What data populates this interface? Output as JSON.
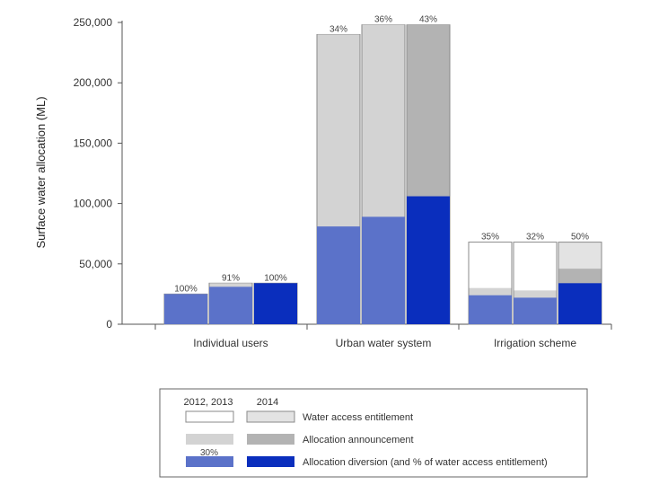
{
  "chart_data": {
    "type": "bar",
    "ylabel": "Surface water allocation (ML)",
    "ylim": [
      0,
      250000
    ],
    "yticks": [
      0,
      50000,
      100000,
      150000,
      200000,
      250000
    ],
    "ytick_labels": [
      "0",
      "50,000",
      "100,000",
      "150,000",
      "200,000",
      "250,000"
    ],
    "categories": [
      "Individual users",
      "Urban water system",
      "Irrigation scheme"
    ],
    "years": [
      "2012",
      "2013",
      "2014"
    ],
    "bars": [
      {
        "category": "Individual users",
        "year": "2012",
        "entitlement": 25000,
        "announcement": 25000,
        "diversion": 25000,
        "percent_label": "100%"
      },
      {
        "category": "Individual users",
        "year": "2013",
        "entitlement": 34000,
        "announcement": 34000,
        "diversion": 31000,
        "percent_label": "91%"
      },
      {
        "category": "Individual users",
        "year": "2014",
        "entitlement": 34000,
        "announcement": 34000,
        "diversion": 34000,
        "percent_label": "100%"
      },
      {
        "category": "Urban water system",
        "year": "2012",
        "entitlement": 240000,
        "announcement": 240000,
        "diversion": 81000,
        "percent_label": "34%"
      },
      {
        "category": "Urban water system",
        "year": "2013",
        "entitlement": 248000,
        "announcement": 248000,
        "diversion": 89000,
        "percent_label": "36%"
      },
      {
        "category": "Urban water system",
        "year": "2014",
        "entitlement": 248000,
        "announcement": 248000,
        "diversion": 106000,
        "percent_label": "43%"
      },
      {
        "category": "Irrigation scheme",
        "year": "2012",
        "entitlement": 68000,
        "announcement": 30000,
        "diversion": 24000,
        "percent_label": "35%"
      },
      {
        "category": "Irrigation scheme",
        "year": "2013",
        "entitlement": 68000,
        "announcement": 28000,
        "diversion": 22000,
        "percent_label": "32%"
      },
      {
        "category": "Irrigation scheme",
        "year": "2014",
        "entitlement": 68000,
        "announcement": 46000,
        "diversion": 34000,
        "percent_label": "50%"
      }
    ],
    "colors": {
      "prior_entitlement": "#ffffff",
      "prior_announcement": "#d3d3d3",
      "prior_diversion": "#5b72c9",
      "current_entitlement": "#e3e3e3",
      "current_announcement": "#b3b3b3",
      "current_diversion": "#0a2ebd",
      "bar_outline": "#8a8a8a",
      "axis": "#555555"
    },
    "legend": {
      "header_prior": "2012, 2013",
      "header_current": "2014",
      "sample_percent": "30%",
      "items": [
        {
          "key": "entitlement",
          "label": "Water access entitlement"
        },
        {
          "key": "announcement",
          "label": "Allocation announcement"
        },
        {
          "key": "diversion",
          "label": "Allocation diversion (and % of water access entitlement)"
        }
      ]
    }
  }
}
